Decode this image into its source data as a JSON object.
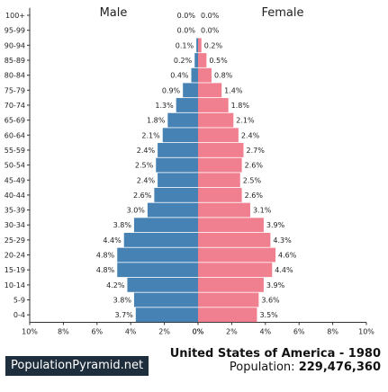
{
  "chart_data": {
    "type": "bar",
    "orientation": "horizontal-diverging",
    "categories": [
      "0-4",
      "5-9",
      "10-14",
      "15-19",
      "20-24",
      "25-29",
      "30-34",
      "35-39",
      "40-44",
      "45-49",
      "50-54",
      "55-59",
      "60-64",
      "65-69",
      "70-74",
      "75-79",
      "80-84",
      "85-89",
      "90-94",
      "95-99",
      "100+"
    ],
    "series": [
      {
        "name": "Male",
        "color": "#4682b4",
        "values": [
          3.7,
          3.8,
          4.2,
          4.8,
          4.8,
          4.4,
          3.8,
          3.0,
          2.6,
          2.4,
          2.5,
          2.4,
          2.1,
          1.8,
          1.3,
          0.9,
          0.4,
          0.2,
          0.1,
          0.0,
          0.0
        ],
        "labels": [
          "3.7%",
          "3.8%",
          "4.2%",
          "4.8%",
          "4.8%",
          "4.4%",
          "3.8%",
          "3.0%",
          "2.6%",
          "2.4%",
          "2.5%",
          "2.4%",
          "2.1%",
          "1.8%",
          "1.3%",
          "0.9%",
          "0.4%",
          "0.2%",
          "0.1%",
          "0.0%",
          "0.0%"
        ]
      },
      {
        "name": "Female",
        "color": "#f08090",
        "values": [
          3.5,
          3.6,
          3.9,
          4.4,
          4.6,
          4.3,
          3.9,
          3.1,
          2.6,
          2.5,
          2.6,
          2.7,
          2.4,
          2.1,
          1.8,
          1.4,
          0.8,
          0.5,
          0.2,
          0.0,
          0.0
        ],
        "labels": [
          "3.5%",
          "3.6%",
          "3.9%",
          "4.4%",
          "4.6%",
          "4.3%",
          "3.9%",
          "3.1%",
          "2.6%",
          "2.5%",
          "2.6%",
          "2.7%",
          "2.4%",
          "2.1%",
          "1.8%",
          "1.4%",
          "0.8%",
          "0.5%",
          "0.2%",
          "0.0%",
          "0.0%"
        ]
      }
    ],
    "x_ticks_left": [
      "10%",
      "8%",
      "6%",
      "4%",
      "2%",
      "0%"
    ],
    "x_ticks_right": [
      "0%",
      "2%",
      "4%",
      "6%",
      "8%",
      "10%"
    ],
    "xlim": [
      0,
      10
    ],
    "grid": false
  },
  "footer": {
    "brand": "PopulationPyramid.net",
    "country_year": "United States of America - 1980",
    "population_label": "Population: ",
    "population_value": "229,476,360"
  }
}
